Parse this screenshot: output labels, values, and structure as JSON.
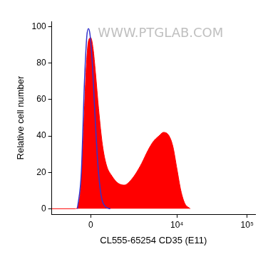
{
  "chart_data": {
    "type": "line",
    "x_label": "CL555-65254 CD35 (E11)",
    "y_label": "Relative cell number",
    "annotations": [
      "WWW.PTGLAB.COM"
    ],
    "xlim": [
      -1975,
      130000
    ],
    "xticks": [
      0,
      {
        "value": 10000,
        "label": "10⁴"
      },
      {
        "value": 100000,
        "label": "10⁵"
      }
    ],
    "ylim": [
      -3,
      103
    ],
    "yticks": [
      0,
      20,
      40,
      60,
      80,
      100
    ],
    "grid": false,
    "series": [
      {
        "type": "area",
        "color": "#ff0000",
        "x": [
          -1975,
          -641,
          -406,
          -278,
          -185,
          -92,
          0,
          92,
          185,
          310,
          471,
          641,
          896,
          1220,
          1610,
          1975,
          2440,
          3060,
          3790,
          4570,
          5500,
          6430,
          7730,
          8790,
          10000,
          11390,
          12940,
          15490
        ],
        "values": [
          0,
          0,
          10,
          45,
          75,
          92,
          94,
          88,
          75,
          55,
          35,
          24,
          18,
          14,
          13,
          15,
          19,
          25,
          32,
          37,
          40,
          42,
          40,
          34,
          22,
          10,
          3,
          0
        ]
      },
      {
        "type": "line",
        "color": "#3333cc",
        "x": [
          -538,
          -374,
          -247,
          -153,
          -92,
          -31,
          61,
          153,
          278,
          406,
          606,
          820
        ],
        "values": [
          0,
          20,
          70,
          95,
          99,
          96,
          80,
          55,
          25,
          8,
          1,
          0
        ]
      }
    ]
  }
}
